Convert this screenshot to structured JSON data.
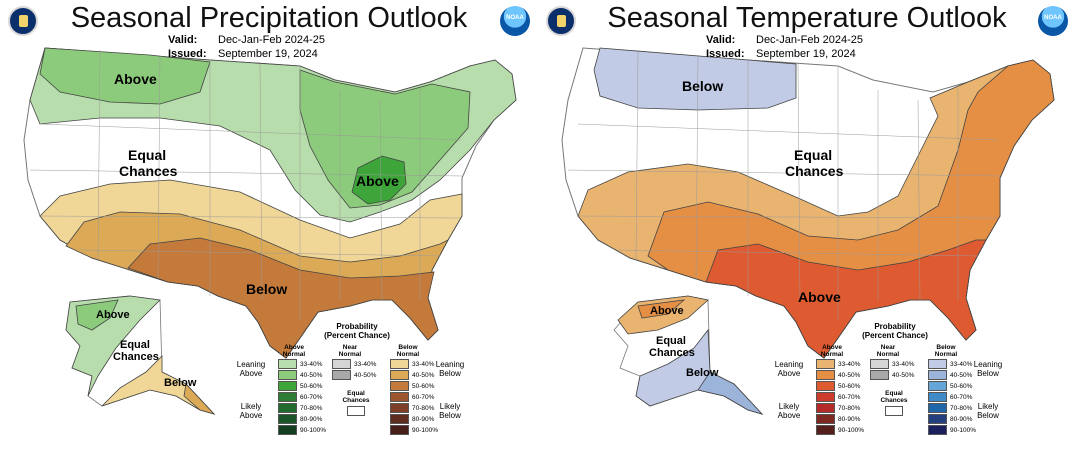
{
  "panels": [
    {
      "title": "Seasonal Precipitation Outlook",
      "valid_label": "Valid:",
      "valid_value": "Dec-Jan-Feb 2024-25",
      "issued_label": "Issued:",
      "issued_value": "September 19, 2024",
      "map_labels": {
        "above_north": "Above",
        "equal_1": "Equal",
        "equal_2": "Chances",
        "above_ohio": "Above",
        "below_south": "Below",
        "ak_above": "Above",
        "ak_equal_1": "Equal",
        "ak_equal_2": "Chances",
        "ak_below": "Below"
      },
      "legend": {
        "title_1": "Probability",
        "title_2": "(Percent Chance)",
        "head_above": "Above Normal",
        "head_near": "Near Normal",
        "head_below": "Below Normal",
        "leaning_left": "Leaning Above",
        "likely_left": "Likely Above",
        "leaning_right": "Leaning Below",
        "likely_right": "Likely Below",
        "equal_label": "Equal Chances",
        "above": [
          {
            "range": "33-40%",
            "color": "#b6ddab"
          },
          {
            "range": "40-50%",
            "color": "#8ccb7b"
          },
          {
            "range": "50-60%",
            "color": "#3da53a"
          },
          {
            "range": "60-70%",
            "color": "#2f7d34"
          },
          {
            "range": "70-80%",
            "color": "#226a2e"
          },
          {
            "range": "80-90%",
            "color": "#1b5427"
          },
          {
            "range": "90-100%",
            "color": "#143f1f"
          }
        ],
        "near": [
          {
            "range": "33-40%",
            "color": "#d5d5d5"
          },
          {
            "range": "40-50%",
            "color": "#a9a9a9"
          }
        ],
        "below": [
          {
            "range": "33-40%",
            "color": "#f1d797"
          },
          {
            "range": "40-50%",
            "color": "#dcaa57"
          },
          {
            "range": "50-60%",
            "color": "#c47a3a"
          },
          {
            "range": "60-70%",
            "color": "#9d5530"
          },
          {
            "range": "70-80%",
            "color": "#7d3f28"
          },
          {
            "range": "80-90%",
            "color": "#5f2c20"
          },
          {
            "range": "90-100%",
            "color": "#451f18"
          }
        ]
      }
    },
    {
      "title": "Seasonal Temperature Outlook",
      "valid_label": "Valid:",
      "valid_value": "Dec-Jan-Feb 2024-25",
      "issued_label": "Issued:",
      "issued_value": "September 19, 2024",
      "map_labels": {
        "below_north": "Below",
        "equal_1": "Equal",
        "equal_2": "Chances",
        "above_south": "Above",
        "ak_above": "Above",
        "ak_equal_1": "Equal",
        "ak_equal_2": "Chances",
        "ak_below": "Below"
      },
      "legend": {
        "title_1": "Probability",
        "title_2": "(Percent Chance)",
        "head_above": "Above Normal",
        "head_near": "Near Normal",
        "head_below": "Below Normal",
        "leaning_left": "Leaning Above",
        "likely_left": "Likely Above",
        "leaning_right": "Leaning Below",
        "likely_right": "Likely Below",
        "equal_label": "Equal Chances",
        "above": [
          {
            "range": "33-40%",
            "color": "#e9b470"
          },
          {
            "range": "40-50%",
            "color": "#e58f45"
          },
          {
            "range": "50-60%",
            "color": "#de5a30"
          },
          {
            "range": "60-70%",
            "color": "#cc3b2c"
          },
          {
            "range": "70-80%",
            "color": "#b52a28"
          },
          {
            "range": "80-90%",
            "color": "#7e2822"
          },
          {
            "range": "90-100%",
            "color": "#55201c"
          }
        ],
        "near": [
          {
            "range": "33-40%",
            "color": "#d5d5d5"
          },
          {
            "range": "40-50%",
            "color": "#a9a9a9"
          }
        ],
        "below": [
          {
            "range": "33-40%",
            "color": "#c1cbe6"
          },
          {
            "range": "40-50%",
            "color": "#9cb4da"
          },
          {
            "range": "50-60%",
            "color": "#64a6d8"
          },
          {
            "range": "60-70%",
            "color": "#3f8bc7"
          },
          {
            "range": "70-80%",
            "color": "#1f67a8"
          },
          {
            "range": "80-90%",
            "color": "#233f7e"
          },
          {
            "range": "90-100%",
            "color": "#1c1f5e"
          }
        ]
      }
    }
  ],
  "colors": {
    "state_border": "#9a9a9a",
    "coast": "#777777",
    "background": "#ffffff"
  }
}
